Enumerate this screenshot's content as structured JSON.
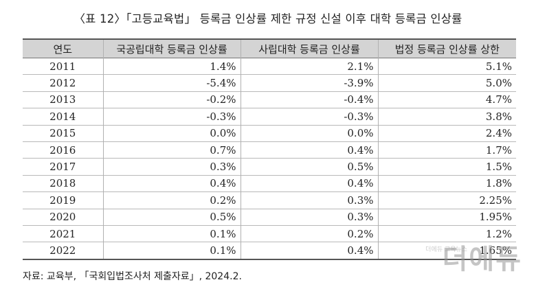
{
  "title": "〈표 12〉「고등교육법」 등록금 인상률 제한 규정 신설 이후 대학 등록금 인상률",
  "table": {
    "headers": [
      "연도",
      "국공립대학 등록금 인상률",
      "사립대학 등록금 인상률",
      "법정 등록금 인상률 상한"
    ],
    "rows": [
      {
        "year": "2011",
        "public": "1.4%",
        "private": "2.1%",
        "cap": "5.1%"
      },
      {
        "year": "2012",
        "public": "-5.4%",
        "private": "-3.9%",
        "cap": "5.0%"
      },
      {
        "year": "2013",
        "public": "-0.2%",
        "private": "-0.4%",
        "cap": "4.7%"
      },
      {
        "year": "2014",
        "public": "-0.3%",
        "private": "-0.3%",
        "cap": "3.8%"
      },
      {
        "year": "2015",
        "public": "0.0%",
        "private": "0.0%",
        "cap": "2.4%"
      },
      {
        "year": "2016",
        "public": "0.7%",
        "private": "0.4%",
        "cap": "1.7%"
      },
      {
        "year": "2017",
        "public": "0.3%",
        "private": "0.5%",
        "cap": "1.5%"
      },
      {
        "year": "2018",
        "public": "0.4%",
        "private": "0.4%",
        "cap": "1.8%"
      },
      {
        "year": "2019",
        "public": "0.2%",
        "private": "0.3%",
        "cap": "2.25%"
      },
      {
        "year": "2020",
        "public": "0.5%",
        "private": "0.3%",
        "cap": "1.95%"
      },
      {
        "year": "2021",
        "public": "0.1%",
        "private": "0.2%",
        "cap": "1.2%"
      },
      {
        "year": "2022",
        "public": "0.1%",
        "private": "0.4%",
        "cap": "1.65%"
      }
    ]
  },
  "source": "자료: 교육부, 「국회입법조사처 제출자료」, 2024.2.",
  "watermark": {
    "text": "더에듀",
    "tag": "더에듀 교육뉴스"
  }
}
